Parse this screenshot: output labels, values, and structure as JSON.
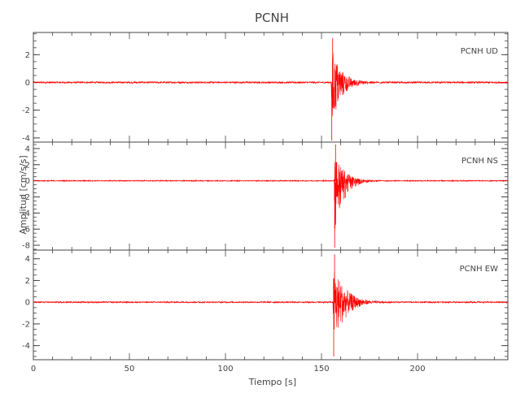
{
  "chart_data": {
    "type": "line",
    "title": "PCNH",
    "xlabel": "Tiempo [s]",
    "ylabel": "Amplitud [cm/s/s]",
    "xlim": [
      0,
      247
    ],
    "xticks": [
      0,
      50,
      100,
      150,
      200
    ],
    "line_color": "#ff0000",
    "axis_color": "#444444",
    "grid": false,
    "panels": [
      {
        "label": "PCNH   UD",
        "ylim": [
          -4.3,
          3.6
        ],
        "yticks": [
          2,
          0,
          -2,
          -4
        ],
        "event": {
          "onset": 155.0,
          "peak_pos": 3.2,
          "peak_neg": -4.2,
          "decay_s": 5.0,
          "duration_s": 50
        }
      },
      {
        "label": "PCNH   NS",
        "ylim": [
          -8.6,
          4.8
        ],
        "yticks": [
          4,
          2,
          0,
          -2,
          -4,
          -6,
          -8
        ],
        "event": {
          "onset": 156.5,
          "peak_pos": 4.5,
          "peak_neg": -8.3,
          "decay_s": 5.0,
          "duration_s": 50
        }
      },
      {
        "label": "PCNH   EW",
        "ylim": [
          -5.3,
          4.8
        ],
        "yticks": [
          4,
          2,
          0,
          -2,
          -4
        ],
        "event": {
          "onset": 156.0,
          "peak_pos": 4.4,
          "peak_neg": -5.0,
          "decay_s": 6.0,
          "duration_s": 55
        }
      }
    ]
  }
}
